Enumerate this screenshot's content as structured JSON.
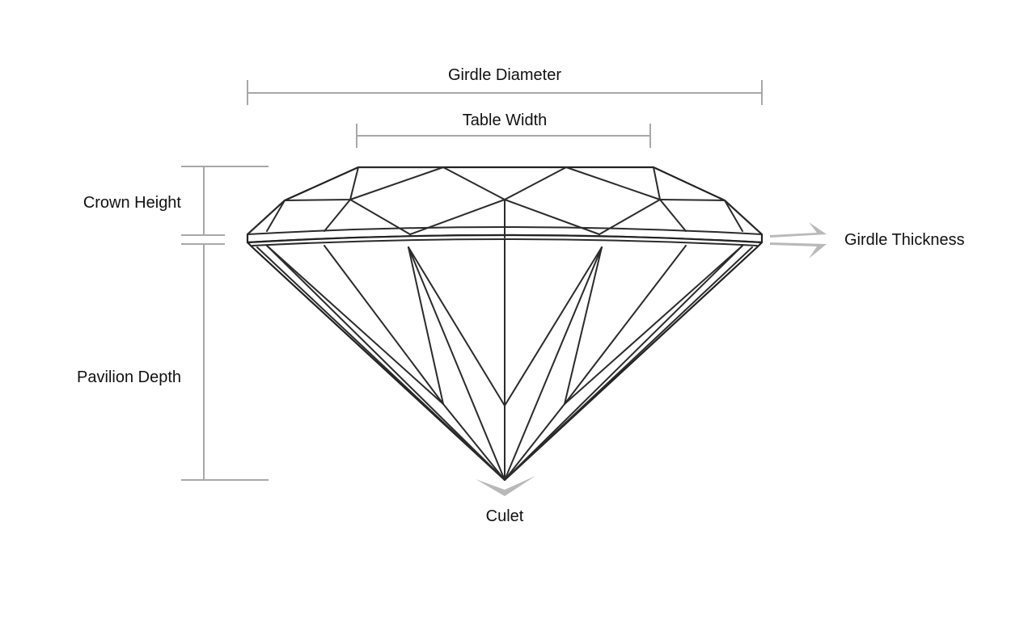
{
  "labels": {
    "girdle_diameter": "Girdle Diameter",
    "table_width": "Table Width",
    "crown_height": "Crown Height",
    "pavilion_depth": "Pavilion Depth",
    "girdle_thickness": "Girdle Thickness",
    "culet": "Culet"
  },
  "colors": {
    "dimension_lines": "#a8a8a8",
    "facet_lines": "#2b2b2b",
    "text": "#111111",
    "arrows": "#b9b9b9"
  }
}
